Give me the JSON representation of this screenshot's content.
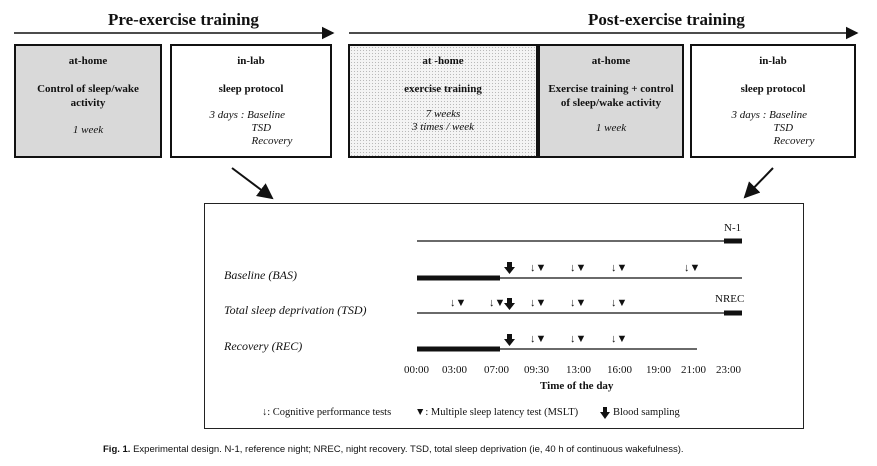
{
  "phases": {
    "pre": "Pre-exercise training",
    "post": "Post-exercise training"
  },
  "boxes": [
    {
      "title": "at-home",
      "heading": "Control of sleep/wake activity",
      "duration": "1 week"
    },
    {
      "title": "in-lab",
      "heading": "sleep protocol",
      "days_label": "3 days : Baseline",
      "days_more": [
        "TSD",
        "Recovery"
      ]
    },
    {
      "title": "at -home",
      "heading": "exercise training",
      "duration_lines": [
        "7 weeks",
        "3 times / week"
      ]
    },
    {
      "title": "at-home",
      "heading": "Exercise training + control of sleep/wake activity",
      "duration": "1 week"
    },
    {
      "title": "in-lab",
      "heading": "sleep protocol",
      "days_label": "3 days : Baseline",
      "days_more": [
        "TSD",
        "Recovery"
      ]
    }
  ],
  "timeline": {
    "reference_night_label": "N-1",
    "recovery_night_label": "NREC",
    "rows": [
      {
        "label": "Baseline (BAS)"
      },
      {
        "label": "Total sleep deprivation (TSD)"
      },
      {
        "label": "Recovery  (REC)"
      }
    ],
    "ticks": [
      "00:00",
      "03:00",
      "07:00",
      "09:30",
      "13:00",
      "16:00",
      "19:00",
      "21:00",
      "23:00"
    ],
    "axis_title": "Time of the day"
  },
  "legend": {
    "cognitive": "↓: Cognitive performance tests",
    "mslt": "▼: Multiple sleep latency test (MSLT)",
    "blood": "Blood sampling"
  },
  "caption": {
    "label": "Fig. 1.",
    "text": "Experimental design. N-1, reference night; NREC, night recovery. TSD, total sleep deprivation (ie, 40 h of continuous wakefulness)."
  }
}
